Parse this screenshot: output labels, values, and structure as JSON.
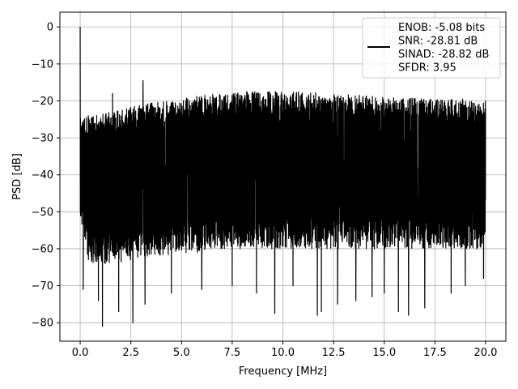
{
  "chart_data": {
    "type": "line",
    "xlabel": "Frequency [MHz]",
    "ylabel": "PSD [dB]",
    "xlim": [
      -1.0,
      21.0
    ],
    "ylim": [
      -85,
      4
    ],
    "xticks": [
      0.0,
      2.5,
      5.0,
      7.5,
      10.0,
      12.5,
      15.0,
      17.5,
      20.0
    ],
    "xtick_labels": [
      "0.0",
      "2.5",
      "5.0",
      "7.5",
      "10.0",
      "12.5",
      "15.0",
      "17.5",
      "20.0"
    ],
    "yticks": [
      0,
      -10,
      -20,
      -30,
      -40,
      -50,
      -60,
      -70,
      -80
    ],
    "ytick_labels": [
      "0",
      "−10",
      "−20",
      "−30",
      "−40",
      "−50",
      "−60",
      "−70",
      "−80"
    ],
    "grid": true,
    "legend_position": "top-right",
    "legend_lines": [
      "ENOB: -5.08 bits",
      "SNR: -28.81 dB",
      "SINAD: -28.82 dB",
      "SFDR: 3.95"
    ],
    "series_color": "#000000",
    "series": [
      {
        "name": "ENOB: -5.08 bits",
        "note_peaks": [
          {
            "x": 0.0,
            "y": 0
          },
          {
            "x": 1.6,
            "y": -18
          },
          {
            "x": 3.1,
            "y": -14.5
          }
        ],
        "envelope": {
          "x": [
            0.0,
            0.5,
            1.0,
            2.0,
            3.0,
            4.0,
            5.0,
            6.0,
            7.0,
            8.0,
            9.0,
            10.0,
            11.0,
            12.0,
            13.0,
            14.0,
            15.0,
            16.0,
            17.0,
            18.0,
            19.0,
            20.0
          ],
          "upper": [
            -24,
            -24,
            -23.5,
            -22.5,
            -21,
            -20,
            -19.5,
            -18.5,
            -18,
            -17.5,
            -17.5,
            -17.5,
            -17.5,
            -18,
            -18,
            -18.5,
            -19,
            -19,
            -19.5,
            -19.5,
            -19.5,
            -20
          ],
          "lower": [
            -55,
            -65,
            -64,
            -64,
            -62,
            -62,
            -61,
            -61,
            -60,
            -60,
            -60,
            -60,
            -60,
            -60,
            -60,
            -60,
            -60,
            -60,
            -60,
            -60,
            -60,
            -60
          ]
        },
        "dips": [
          {
            "x": 1.1,
            "y": -81
          },
          {
            "x": 2.6,
            "y": -80
          },
          {
            "x": 1.9,
            "y": -77
          },
          {
            "x": 0.9,
            "y": -74
          },
          {
            "x": 3.2,
            "y": -75
          },
          {
            "x": 0.15,
            "y": -71
          },
          {
            "x": 9.6,
            "y": -77.5
          },
          {
            "x": 11.7,
            "y": -78
          },
          {
            "x": 11.9,
            "y": -77
          },
          {
            "x": 16.2,
            "y": -78
          },
          {
            "x": 15.7,
            "y": -77
          },
          {
            "x": 17.0,
            "y": -76
          },
          {
            "x": 12.7,
            "y": -75
          },
          {
            "x": 13.6,
            "y": -74
          },
          {
            "x": 15.0,
            "y": -72
          },
          {
            "x": 8.7,
            "y": -72
          },
          {
            "x": 10.5,
            "y": -70
          },
          {
            "x": 18.3,
            "y": -72
          },
          {
            "x": 19.0,
            "y": -70
          },
          {
            "x": 19.9,
            "y": -68
          },
          {
            "x": 4.5,
            "y": -72
          },
          {
            "x": 6.0,
            "y": -71
          },
          {
            "x": 7.5,
            "y": -70
          },
          {
            "x": 14.4,
            "y": -73
          }
        ]
      }
    ]
  }
}
